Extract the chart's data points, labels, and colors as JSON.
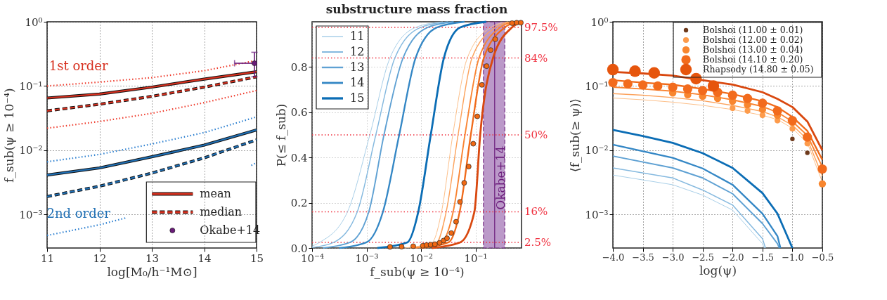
{
  "chart_data": [
    {
      "type": "line",
      "xlabel": "log[M₀/h⁻¹M⊙]",
      "ylabel": "f_sub(ψ ≥ 10⁻⁴)",
      "xlim": [
        11,
        15
      ],
      "ylim": [
        0.0003,
        1
      ],
      "xticks": [
        11,
        12,
        13,
        14,
        15
      ],
      "yticks": [
        {
          "value": 0.001,
          "label": "10⁻³"
        },
        {
          "value": 0.01,
          "label": "10⁻²"
        },
        {
          "value": 0.1,
          "label": "10⁻¹"
        },
        {
          "value": 1,
          "label": "10⁰"
        }
      ],
      "log": "y",
      "grid": true,
      "legend": "bottom right",
      "x": [
        11,
        12,
        13,
        14,
        15
      ],
      "series": [
        {
          "name": "mean",
          "color": "#d7301f",
          "line_style": "solid",
          "values": [
            0.065,
            0.075,
            0.096,
            0.128,
            0.167
          ]
        },
        {
          "name": "median",
          "color": "#d7301f",
          "line_style": "dashed",
          "values": [
            0.041,
            0.052,
            0.069,
            0.096,
            0.139
          ]
        },
        {
          "color": "#ef3b2c",
          "line_style": "dotted",
          "values": [
            0.1,
            0.115,
            0.135,
            0.173,
            0.25
          ]
        },
        {
          "color": "#ef3b2c",
          "line_style": "dotted",
          "values": [
            0.022,
            0.028,
            0.0375,
            0.055,
            0.085
          ]
        },
        {
          "color": "#1f6fb4",
          "line_style": "solid",
          "values": [
            0.0041,
            0.0053,
            0.0079,
            0.012,
            0.0207
          ]
        },
        {
          "color": "#1f6fb4",
          "line_style": "dashed",
          "values": [
            0.0019,
            0.00275,
            0.0044,
            0.0076,
            0.0145
          ]
        },
        {
          "color": "#2b7fd0",
          "line_style": "dotted",
          "values": [
            0.0066,
            0.0086,
            0.0125,
            0.0188,
            0.033
          ]
        },
        {
          "color": "#2b7fd0",
          "line_style": "dotted",
          "x": [
            11,
            12,
            12.5,
            13,
            14,
            14.9,
            15
          ],
          "values": [
            0.00047,
            0.00069,
            0.00088,
            null,
            null,
            0.0058,
            0.0064
          ]
        },
        {
          "name": "Okabe+14",
          "type": "scatter",
          "marker": "circle",
          "color": "#6a1b7a",
          "x": [
            14.96
          ],
          "values": [
            0.226
          ],
          "errors": [
            [
              0.139,
              0.335
            ]
          ],
          "xerrors": [
            [
              14.58,
              15
            ]
          ]
        }
      ],
      "annotations": [
        "1st order",
        "2nd order"
      ]
    },
    {
      "type": "line",
      "title": "substructure mass fraction",
      "xlabel": "f_sub(ψ ≥ 10⁻⁴)",
      "ylabel": "P(≤ f_sub)",
      "xlim": [
        0.0001,
        0.7
      ],
      "ylim": [
        0,
        1
      ],
      "xticks": [
        {
          "value": 0.0001,
          "label": "10⁻⁴"
        },
        {
          "value": 0.001,
          "label": "10⁻³"
        },
        {
          "value": 0.01,
          "label": "10⁻²"
        },
        {
          "value": 0.1,
          "label": "10⁻¹"
        }
      ],
      "yticks": [
        {
          "value": 0,
          "label": "0.0"
        },
        {
          "value": 0.2,
          "label": "0.2"
        },
        {
          "value": 0.4,
          "label": "0.4"
        },
        {
          "value": 0.6,
          "label": "0.6"
        },
        {
          "value": 0.8,
          "label": "0.8"
        }
      ],
      "log": "x",
      "grid": true,
      "legend": "top left",
      "series": [
        {
          "name": "11",
          "color": "#a9cfe8",
          "x": [
            0.0001,
            0.000138,
            0.000447,
            0.00115,
            0.00269,
            0.00794,
            0.0251
          ],
          "values": [
            0.008,
            0.025,
            0.16,
            0.5,
            0.84,
            0.975,
            1
          ]
        },
        {
          "name": "12",
          "color": "#85b9df",
          "x": [
            0.0001,
            0.000251,
            0.000676,
            0.00148,
            0.00331,
            0.00977,
            0.0316
          ],
          "values": [
            0.002,
            0.025,
            0.16,
            0.5,
            0.84,
            0.975,
            1
          ]
        },
        {
          "name": "13",
          "color": "#5fa1d3",
          "x": [
            0.000158,
            0.000501,
            0.0011,
            0.00209,
            0.00468,
            0.0132,
            0.0398
          ],
          "values": [
            0,
            0.025,
            0.16,
            0.5,
            0.84,
            0.975,
            1
          ]
        },
        {
          "name": "14",
          "color": "#3487c5",
          "x": [
            0.000316,
            0.001,
            0.002,
            0.00398,
            0.00794,
            0.0195,
            0.0631
          ],
          "values": [
            0,
            0.025,
            0.16,
            0.5,
            0.84,
            0.975,
            1
          ]
        },
        {
          "name": "15",
          "color": "#0b6db5",
          "x": [
            0.00158,
            0.00562,
            0.00891,
            0.0151,
            0.0263,
            0.0525,
            0.158
          ],
          "values": [
            0,
            0.025,
            0.16,
            0.5,
            0.84,
            0.975,
            1
          ]
        },
        {
          "color": "#fdc08a",
          "x": [
            0.005,
            0.016,
            0.0238,
            0.0383,
            0.0708,
            0.191,
            0.398
          ],
          "values": [
            0,
            0.025,
            0.16,
            0.5,
            0.84,
            0.975,
            1
          ]
        },
        {
          "color": "#fca35d",
          "x": [
            0.0063,
            0.0195,
            0.029,
            0.0479,
            0.0863,
            0.232,
            0.447
          ],
          "values": [
            0,
            0.025,
            0.16,
            0.5,
            0.84,
            0.975,
            1
          ]
        },
        {
          "color": "#f98534",
          "x": [
            0.0079,
            0.0238,
            0.0389,
            0.0641,
            0.116,
            0.283,
            0.501
          ],
          "values": [
            0,
            0.025,
            0.16,
            0.5,
            0.84,
            0.975,
            1
          ]
        },
        {
          "color": "#f06a1a",
          "x": [
            0.01,
            0.032,
            0.0513,
            0.082,
            0.142,
            0.345,
            0.562
          ],
          "values": [
            0,
            0.025,
            0.16,
            0.5,
            0.84,
            0.975,
            1
          ]
        },
        {
          "color": "#d9480f",
          "x": [
            0.0158,
            0.0525,
            0.0955,
            0.122,
            0.21,
            0.468,
            0.676
          ],
          "values": [
            0,
            0.025,
            0.16,
            0.5,
            0.84,
            0.975,
            1
          ]
        },
        {
          "type": "scatter",
          "marker": "circle",
          "color": "#f16913",
          "x": [
            0.0027,
            0.0044,
            0.0072,
            0.0108,
            0.0126,
            0.015,
            0.018,
            0.022,
            0.026,
            0.03,
            0.036,
            0.044,
            0.052,
            0.062,
            0.075,
            0.091,
            0.108,
            0.131,
            0.16,
            0.19,
            0.23,
            0.47,
            0.57,
            0.68
          ],
          "values": [
            0.005,
            0.006,
            0.008,
            0.01,
            0.013,
            0.015,
            0.017,
            0.023,
            0.033,
            0.043,
            0.066,
            0.116,
            0.204,
            0.288,
            0.36,
            0.461,
            0.582,
            0.721,
            0.804,
            0.875,
            0.923,
            0.994,
            0.996,
            0.996
          ]
        }
      ],
      "ref_lines": [
        {
          "axis": "y",
          "value": 0.025,
          "label": "2.5%",
          "color": "#f0303f",
          "line_style": "dotted"
        },
        {
          "axis": "y",
          "value": 0.16,
          "label": "16%",
          "color": "#f0303f",
          "line_style": "dotted"
        },
        {
          "axis": "y",
          "value": 0.5,
          "label": "50%",
          "color": "#f0303f",
          "line_style": "dotted"
        },
        {
          "axis": "y",
          "value": 0.84,
          "label": "84%",
          "color": "#f0303f",
          "line_style": "dotted"
        },
        {
          "axis": "y",
          "value": 0.975,
          "label": "97.5%",
          "color": "#f0303f",
          "line_style": "dotted"
        },
        {
          "axis": "x",
          "value": 0.225,
          "color": "#6a1b7a",
          "line_style": "solid"
        }
      ],
      "bands": [
        {
          "axis": "x",
          "from": 0.14,
          "to": 0.345,
          "label": "Okabe+14",
          "color": "#b48fc4"
        }
      ]
    },
    {
      "type": "line",
      "xlabel": "log(ψ)",
      "ylabel": "⟨f_sub(≥ ψ)⟩",
      "xlim": [
        -4,
        -0.5
      ],
      "ylim": [
        0.0003,
        1
      ],
      "xticks": [
        {
          "value": -4,
          "label": "−4.0"
        },
        {
          "value": -3.5,
          "label": "−3.5"
        },
        {
          "value": -3,
          "label": "−3.0"
        },
        {
          "value": -2.5,
          "label": "−2.5"
        },
        {
          "value": -2,
          "label": "−2.0"
        },
        {
          "value": -1.5,
          "label": "−1.5"
        },
        {
          "value": -1,
          "label": "−1.0"
        },
        {
          "value": -0.5,
          "label": "−0.5"
        }
      ],
      "yticks": [
        {
          "value": 0.001,
          "label": "10⁻³"
        },
        {
          "value": 0.01,
          "label": "10⁻²"
        },
        {
          "value": 0.1,
          "label": "10⁻¹"
        },
        {
          "value": 1,
          "label": "10⁰"
        }
      ],
      "log": "y",
      "grid": true,
      "legend": "top right",
      "x": [
        -4,
        -3.5,
        -3,
        -2.5,
        -2,
        -1.5,
        -1.25,
        -1,
        -0.75,
        -0.5
      ],
      "series": [
        {
          "color": "#fdc08a",
          "values": [
            0.065,
            0.061,
            0.056,
            0.05,
            0.043,
            0.035,
            0.03,
            0.022,
            0.013,
            0.0032
          ]
        },
        {
          "color": "#fca35d",
          "values": [
            0.076,
            0.072,
            0.066,
            0.059,
            0.05,
            0.04,
            0.033,
            0.0245,
            0.0147,
            0.004
          ]
        },
        {
          "color": "#f98534",
          "values": [
            0.096,
            0.09,
            0.083,
            0.073,
            0.061,
            0.048,
            0.039,
            0.028,
            0.017,
            0.0055
          ]
        },
        {
          "color": "#f06a1a",
          "values": [
            0.123,
            0.113,
            0.105,
            0.09,
            0.075,
            0.058,
            0.047,
            0.033,
            0.02,
            0.0071
          ]
        },
        {
          "color": "#d9480f",
          "values": [
            0.166,
            0.157,
            0.145,
            0.123,
            0.105,
            0.08,
            0.063,
            0.047,
            0.028,
            0.01
          ]
        },
        {
          "color": "#a9cfe8",
          "x": [
            -4,
            -3,
            -2.5,
            -2,
            -1.5,
            -1.47
          ],
          "values": [
            0.0041,
            0.0029,
            0.002,
            0.00117,
            0.00035,
            0.0003
          ]
        },
        {
          "color": "#85b9df",
          "x": [
            -4,
            -3,
            -2.5,
            -2,
            -1.5,
            -1.45
          ],
          "values": [
            0.0053,
            0.0037,
            0.0024,
            0.0014,
            0.00042,
            0.0003
          ]
        },
        {
          "color": "#5fa1d3",
          "x": [
            -4,
            -3,
            -2.5,
            -2,
            -1.5,
            -1.25,
            -1.22
          ],
          "values": [
            0.0081,
            0.0053,
            0.0037,
            0.0021,
            0.00072,
            0.00035,
            0.0003
          ]
        },
        {
          "color": "#3487c5",
          "x": [
            -4,
            -3,
            -2.5,
            -2,
            -1.5,
            -1.25,
            -1.2
          ],
          "values": [
            0.0122,
            0.0076,
            0.0052,
            0.0029,
            0.00103,
            0.00046,
            0.0003
          ]
        },
        {
          "color": "#0b6db5",
          "x": [
            -4,
            -3.5,
            -3,
            -2.5,
            -2,
            -1.5,
            -1.25,
            -1
          ],
          "values": [
            0.0207,
            0.0166,
            0.013,
            0.009,
            0.0053,
            0.00215,
            0.00103,
            0.0003
          ]
        },
        {
          "name": "Bolshoi (11.00 ± 0.01)",
          "type": "bubble",
          "color": "#6e3a1c",
          "x": [
            -1,
            -0.75
          ],
          "values": [
            0.015,
            0.0091
          ],
          "sizes": [
            0.15,
            0.15
          ]
        },
        {
          "name": "Bolshoi (12.00 ± 0.02)",
          "type": "bubble",
          "color": "#fd9b4b",
          "x": [
            -2,
            -1.75,
            -1.5,
            -1.25,
            -1,
            -0.75
          ],
          "values": [
            0.045,
            0.041,
            0.035,
            0.029,
            0.0216,
            0.0127
          ],
          "sizes": [
            0.25,
            0.25,
            0.25,
            0.25,
            0.25,
            0.25
          ]
        },
        {
          "name": "Bolshoi (13.00 ± 0.04)",
          "type": "bubble",
          "color": "#f8862f",
          "x": [
            -3,
            -2.75,
            -2.5,
            -2.25,
            -2,
            -1.75,
            -1.5,
            -1.25,
            -1,
            -0.5
          ],
          "values": [
            0.078,
            0.073,
            0.069,
            0.064,
            0.058,
            0.051,
            0.043,
            0.035,
            0.027,
            0.003
          ],
          "sizes": [
            0.4,
            0.4,
            0.4,
            0.4,
            0.4,
            0.4,
            0.4,
            0.4,
            0.4,
            0.4
          ]
        },
        {
          "name": "Bolshoi (14.10 ± 0.20)",
          "type": "bubble",
          "color": "#f26b1d",
          "x": [
            -4,
            -3.75,
            -3.5,
            -3.25,
            -3,
            -2.75,
            -2.5,
            -2.25,
            -2,
            -1.75,
            -1.5,
            -1.25,
            -1,
            -0.75,
            -0.5
          ],
          "values": [
            0.113,
            0.108,
            0.104,
            0.1,
            0.096,
            0.09,
            0.085,
            0.08,
            0.072,
            0.064,
            0.054,
            0.041,
            0.029,
            0.016,
            0.0051
          ],
          "sizes": [
            0.65,
            0.65,
            0.65,
            0.65,
            0.65,
            0.65,
            0.65,
            0.65,
            0.65,
            0.65,
            0.65,
            0.65,
            0.65,
            0.65,
            0.65
          ]
        },
        {
          "name": "Rhapsody (14.80 ± 0.05)",
          "type": "bubble",
          "color": "#e6550d",
          "x": [
            -4,
            -3.63,
            -3.31,
            -2.61,
            -2.32
          ],
          "values": [
            0.18,
            0.17,
            0.16,
            0.13,
            0.1
          ],
          "sizes": [
            1,
            1,
            1,
            1,
            1
          ]
        }
      ]
    }
  ]
}
